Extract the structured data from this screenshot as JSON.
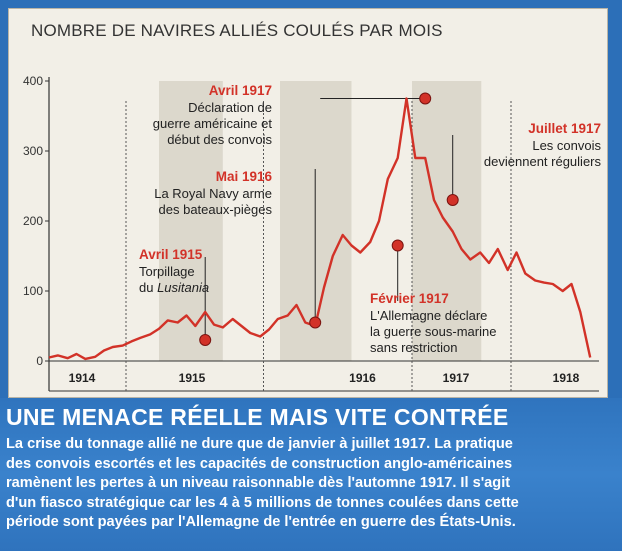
{
  "chart_data": {
    "type": "line",
    "title": "NOMBRE DE NAVIRES ALLIÉS COULÉS PAR MOIS",
    "xlabel": "",
    "ylabel": "",
    "x_range": [
      1914.0,
      1919.0
    ],
    "ylim": [
      0,
      400
    ],
    "y_ticks": [
      "0",
      "100",
      "200",
      "300",
      "400"
    ],
    "year_labels": [
      {
        "label": "1914",
        "x": 1914.3
      },
      {
        "label": "1915",
        "x": 1915.3
      },
      {
        "label": "1916",
        "x": 1916.85
      },
      {
        "label": "1917",
        "x": 1917.7
      },
      {
        "label": "1918",
        "x": 1918.7
      }
    ],
    "year_dividers": [
      1914.7,
      1915.95,
      1917.3,
      1918.2
    ],
    "shaded_periods": [
      [
        1915.0,
        1915.58
      ],
      [
        1916.1,
        1916.75
      ],
      [
        1917.3,
        1917.93
      ]
    ],
    "grid": false,
    "series": [
      {
        "color": "#d23228",
        "x": [
          1914.0,
          1914.08,
          1914.17,
          1914.25,
          1914.33,
          1914.42,
          1914.5,
          1914.58,
          1914.67,
          1914.75,
          1914.83,
          1914.92,
          1915.0,
          1915.08,
          1915.17,
          1915.25,
          1915.33,
          1915.42,
          1915.5,
          1915.58,
          1915.67,
          1915.75,
          1915.83,
          1915.92,
          1916.0,
          1916.08,
          1916.17,
          1916.25,
          1916.33,
          1916.42,
          1916.5,
          1916.58,
          1916.67,
          1916.75,
          1916.83,
          1916.92,
          1917.0,
          1917.08,
          1917.17,
          1917.25,
          1917.33,
          1917.42,
          1917.5,
          1917.58,
          1917.67,
          1917.75,
          1917.83,
          1917.92,
          1918.0,
          1918.08,
          1918.17,
          1918.25,
          1918.33,
          1918.42,
          1918.5,
          1918.58,
          1918.67,
          1918.75,
          1918.83,
          1918.92
        ],
        "y": [
          5,
          8,
          4,
          10,
          3,
          6,
          15,
          20,
          22,
          28,
          33,
          38,
          46,
          58,
          55,
          65,
          50,
          70,
          52,
          48,
          60,
          50,
          40,
          35,
          45,
          60,
          65,
          80,
          55,
          50,
          105,
          150,
          180,
          165,
          155,
          170,
          200,
          260,
          290,
          375,
          290,
          290,
          230,
          205,
          185,
          160,
          145,
          155,
          140,
          160,
          130,
          155,
          125,
          115,
          112,
          110,
          100,
          110,
          70,
          5
        ]
      }
    ],
    "annotations": [
      {
        "x": 1915.42,
        "y": 30,
        "title": "Avril 1915",
        "lines": [
          "Torpillage",
          "du "
        ],
        "italic": "Lusitania"
      },
      {
        "x": 1916.42,
        "y": 55,
        "title": "Mai 1916",
        "lines": [
          "La Royal Navy arme",
          "des bateaux-pièges"
        ]
      },
      {
        "x": 1917.17,
        "y": 165,
        "title": "Février 1917",
        "lines": [
          "L'Allemagne déclare",
          "la guerre sous-marine",
          "sans restriction"
        ]
      },
      {
        "x": 1917.42,
        "y": 375,
        "title": "Avril 1917",
        "lines": [
          "Déclaration de",
          "guerre américaine et",
          "début des convois"
        ]
      },
      {
        "x": 1917.67,
        "y": 230,
        "title": "Juillet 1917",
        "lines": [
          "Les convois",
          "deviennent réguliers"
        ]
      }
    ]
  },
  "footer": {
    "headline": "UNE MENACE RÉELLE MAIS VITE CONTRÉE",
    "body_lines": [
      "La crise du tonnage allié ne dure que de janvier à juillet 1917. La pratique",
      "des convois escortés et les capacités de construction anglo-américaines",
      "ramènent les pertes à un niveau raisonnable dès l'automne 1917. Il s'agit",
      "d'un fiasco stratégique car les 4 à 5 millions de tonnes coulées dans cette",
      "période sont payées par l'Allemagne de l'entrée en guerre des États-Unis."
    ]
  }
}
